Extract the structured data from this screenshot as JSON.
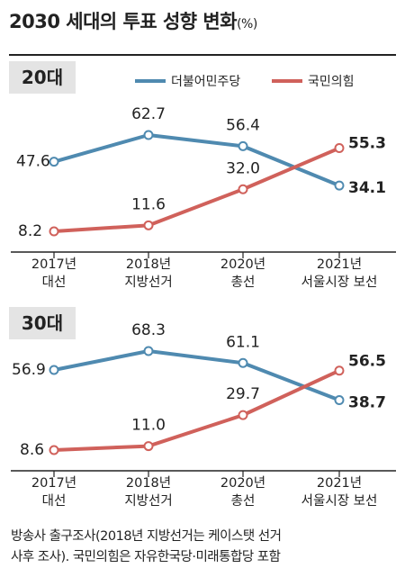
{
  "title": "2030 세대의 투표 성향 변화",
  "title_unit": "(%)",
  "legend": [
    {
      "name": "더불어민주당",
      "color": "#4f8ab0"
    },
    {
      "name": "국민의힘",
      "color": "#d0615b"
    }
  ],
  "chart_data": [
    {
      "type": "line",
      "panel_label": "20대",
      "categories": [
        "2017년\n대선",
        "2018년\n지방선거",
        "2020년\n총선",
        "2021년\n서울시장 보선"
      ],
      "series": [
        {
          "name": "더불어민주당",
          "color": "#4f8ab0",
          "values": [
            47.6,
            62.7,
            56.4,
            34.1
          ]
        },
        {
          "name": "국민의힘",
          "color": "#d0615b",
          "values": [
            8.2,
            11.6,
            32.0,
            55.3
          ]
        }
      ],
      "ylim": [
        0,
        70
      ],
      "legend_position": "top-right"
    },
    {
      "type": "line",
      "panel_label": "30대",
      "categories": [
        "2017년\n대선",
        "2018년\n지방선거",
        "2020년\n총선",
        "2021년\n서울시장 보선"
      ],
      "series": [
        {
          "name": "더불어민주당",
          "color": "#4f8ab0",
          "values": [
            56.9,
            68.3,
            61.1,
            38.7
          ]
        },
        {
          "name": "국민의힘",
          "color": "#d0615b",
          "values": [
            8.6,
            11.0,
            29.7,
            56.5
          ]
        }
      ],
      "ylim": [
        0,
        75
      ]
    }
  ],
  "footnote": [
    "방송사 출구조사(2018년 지방선거는 케이스탯 선거",
    "사후 조사). 국민의힘은 자유한국당·미래통합당 포함"
  ]
}
